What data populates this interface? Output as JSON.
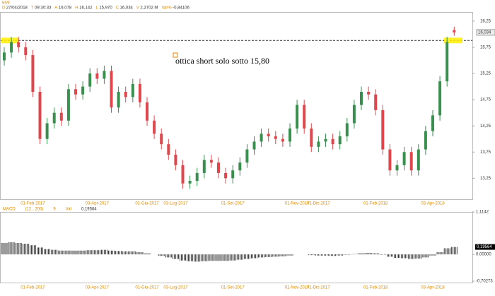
{
  "chart_data": {
    "type": "candlestick",
    "title": "EMI",
    "header": [
      {
        "key": "D",
        "value": "27/04/2018"
      },
      {
        "key": "T",
        "value": "09:30:33"
      },
      {
        "key": "A",
        "value": "16,078"
      },
      {
        "key": "H",
        "value": "16,142"
      },
      {
        "key": "L",
        "value": "15,970"
      },
      {
        "key": "C",
        "value": "16,034"
      },
      {
        "key": "V",
        "value": "2,2702 M"
      },
      {
        "key": "Var%",
        "value": "-0,84106"
      }
    ],
    "annotation": "ottica short solo sotto 15,80",
    "hline": 15.88,
    "up_color": "#3a8f4f",
    "down_color": "#e0474c",
    "categories": [
      null,
      null,
      null,
      null,
      "01-Feb-2017",
      null,
      null,
      null,
      null,
      null,
      null,
      null,
      null,
      "03-Apr-2017",
      null,
      null,
      null,
      null,
      null,
      null,
      "01-Giu-2017",
      null,
      null,
      null,
      "03-Lug-2017",
      null,
      null,
      null,
      null,
      null,
      null,
      null,
      "01-Set-2017",
      null,
      null,
      null,
      null,
      null,
      null,
      null,
      null,
      "01-Nov-2017",
      null,
      null,
      "01-Dic-2017",
      null,
      null,
      null,
      null,
      null,
      null,
      null,
      "01-Feb-2018",
      null,
      null,
      null,
      null,
      null,
      null,
      null,
      "03-Apr-2018",
      null,
      null,
      null
    ],
    "open": [
      15.5,
      15.65,
      15.85,
      15.75,
      15.6,
      14.9,
      14.0,
      14.3,
      14.5,
      14.35,
      14.95,
      14.85,
      15.0,
      15.25,
      15.15,
      15.3,
      14.6,
      14.9,
      14.8,
      15.05,
      14.7,
      14.35,
      14.1,
      13.9,
      13.7,
      13.5,
      13.15,
      13.2,
      13.35,
      13.6,
      13.55,
      13.35,
      13.25,
      13.4,
      13.55,
      13.8,
      13.95,
      14.1,
      14.05,
      14.0,
      13.95,
      14.2,
      14.65,
      14.2,
      13.85,
      13.95,
      14.0,
      13.9,
      14.05,
      14.3,
      14.65,
      14.9,
      14.85,
      14.55,
      13.8,
      13.4,
      13.5,
      13.75,
      13.4,
      13.8,
      14.15,
      14.45,
      15.1,
      16.078
    ],
    "high": [
      15.75,
      15.95,
      15.95,
      15.85,
      15.7,
      15.0,
      14.4,
      14.6,
      14.6,
      15.05,
      15.05,
      15.1,
      15.35,
      15.35,
      15.4,
      15.4,
      15.0,
      15.0,
      15.15,
      15.15,
      14.8,
      14.45,
      14.2,
      14.0,
      13.8,
      13.6,
      13.3,
      13.45,
      13.7,
      13.7,
      13.65,
      13.45,
      13.5,
      13.65,
      13.9,
      14.05,
      14.2,
      14.2,
      14.15,
      14.1,
      14.3,
      14.75,
      14.75,
      14.3,
      14.05,
      14.1,
      14.1,
      14.15,
      14.4,
      14.75,
      15.0,
      15.0,
      14.95,
      14.65,
      13.9,
      13.6,
      13.85,
      13.85,
      13.9,
      14.25,
      14.55,
      15.2,
      15.95,
      16.142
    ],
    "low": [
      15.4,
      15.55,
      15.65,
      15.5,
      14.8,
      13.9,
      13.9,
      14.2,
      14.25,
      14.25,
      14.75,
      14.75,
      14.9,
      15.05,
      15.05,
      14.5,
      14.5,
      14.7,
      14.7,
      14.6,
      14.25,
      14.0,
      13.8,
      13.6,
      13.4,
      13.05,
      13.05,
      13.1,
      13.25,
      13.45,
      13.25,
      13.15,
      13.15,
      13.3,
      13.45,
      13.7,
      13.85,
      13.95,
      13.9,
      13.85,
      13.85,
      14.1,
      14.1,
      13.75,
      13.75,
      13.85,
      13.8,
      13.8,
      13.95,
      14.2,
      14.55,
      14.75,
      14.45,
      13.7,
      13.3,
      13.3,
      13.4,
      13.3,
      13.3,
      13.7,
      14.05,
      14.35,
      15.0,
      15.97
    ],
    "close": [
      15.65,
      15.85,
      15.75,
      15.6,
      14.9,
      14.0,
      14.3,
      14.5,
      14.35,
      14.95,
      14.85,
      15.0,
      15.25,
      15.15,
      15.3,
      14.6,
      14.9,
      14.8,
      15.05,
      14.7,
      14.35,
      14.1,
      13.9,
      13.7,
      13.5,
      13.15,
      13.2,
      13.35,
      13.6,
      13.55,
      13.35,
      13.25,
      13.4,
      13.55,
      13.8,
      13.95,
      14.1,
      14.05,
      14.0,
      13.95,
      14.2,
      14.65,
      14.2,
      13.85,
      13.95,
      14.0,
      13.9,
      14.05,
      14.3,
      14.65,
      14.9,
      14.85,
      14.55,
      13.8,
      13.4,
      13.5,
      13.75,
      13.4,
      13.8,
      14.15,
      14.45,
      15.1,
      15.85,
      16.034
    ],
    "ylim": [
      12.85,
      16.41
    ],
    "yticks": [
      {
        "value": 13.25,
        "label": "13,25"
      },
      {
        "value": 13.75,
        "label": "13,75"
      },
      {
        "value": 14.25,
        "label": "14,25"
      },
      {
        "value": 14.75,
        "label": "14,75"
      },
      {
        "value": 15.25,
        "label": "15,25"
      },
      {
        "value": 15.75,
        "label": "15,75"
      },
      {
        "value": 16.25,
        "label": "16,25"
      }
    ],
    "macd": {
      "name": "MACD",
      "params": "(12 , 200)",
      "signal": "9",
      "val_key": "Val",
      "current_label": "0,19564",
      "values": [
        0.3,
        0.32,
        0.3,
        0.28,
        0.24,
        0.18,
        0.14,
        0.12,
        0.1,
        0.1,
        0.1,
        0.1,
        0.11,
        0.11,
        0.12,
        0.1,
        0.09,
        0.08,
        0.08,
        0.06,
        0.03,
        0.0,
        -0.04,
        -0.08,
        -0.12,
        -0.16,
        -0.18,
        -0.19,
        -0.18,
        -0.17,
        -0.17,
        -0.17,
        -0.16,
        -0.14,
        -0.12,
        -0.1,
        -0.08,
        -0.07,
        -0.06,
        -0.05,
        -0.03,
        0.0,
        0.0,
        -0.02,
        -0.03,
        -0.03,
        -0.04,
        -0.03,
        -0.01,
        0.01,
        0.03,
        0.04,
        0.03,
        -0.01,
        -0.06,
        -0.09,
        -0.1,
        -0.12,
        -0.11,
        -0.08,
        -0.03,
        0.06,
        0.16,
        0.19564
      ],
      "ylim": [
        -0.70273,
        1.1142
      ],
      "yticks": [
        {
          "value": -0.70273,
          "label": "-0,70273"
        },
        {
          "value": 0,
          "label": "0,00000"
        },
        {
          "value": 1.1142,
          "label": "1,1142"
        }
      ]
    }
  }
}
